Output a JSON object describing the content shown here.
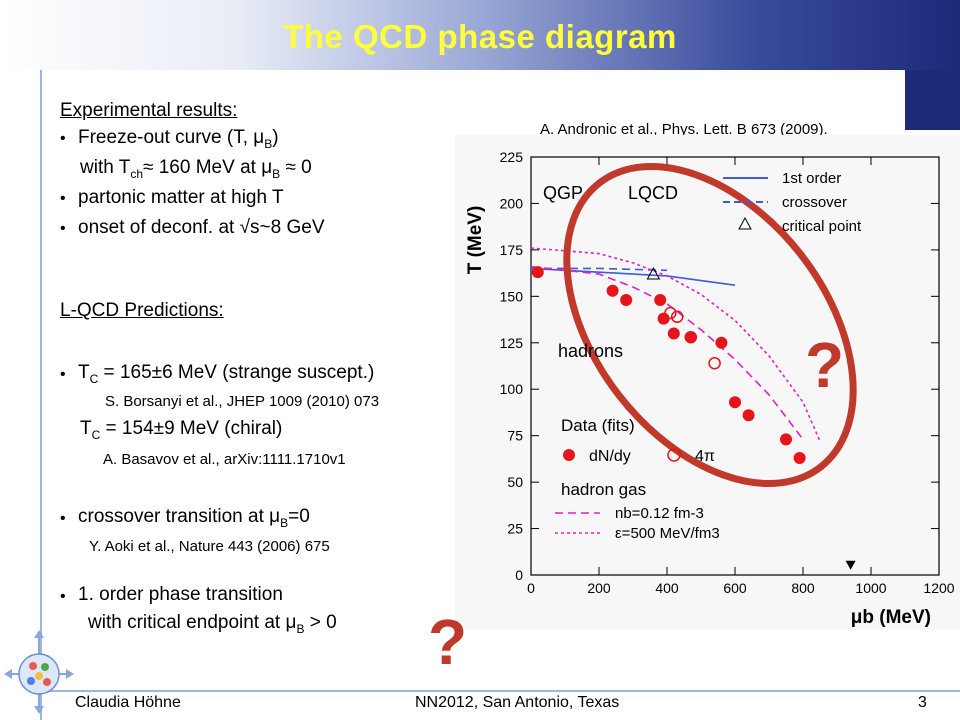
{
  "slide": {
    "title": "The QCD phase diagram",
    "experimental": {
      "heading": "Experimental results:",
      "line1": "Freeze-out curve (T, μ",
      "line1_sub": "B",
      "line1_end": ")",
      "line2_a": "with T",
      "line2_sub1": "ch",
      "line2_b": "≈ 160 MeV at μ",
      "line2_sub2": "B",
      "line2_c": "≈ 0",
      "line3": "partonic matter at high T",
      "line4": "onset of deconf. at √s~8 GeV"
    },
    "lqcd": {
      "heading": "L-QCD Predictions:",
      "tc1_a": "T",
      "tc1_sub": "C",
      "tc1_b": " = 165±6 MeV (strange suscept.)",
      "cite1": "S. Borsanyi et al., JHEP 1009 (2010) 073",
      "tc2_a": "T",
      "tc2_sub": "C",
      "tc2_b": " = 154±9 MeV (chiral)",
      "cite2": "A. Basavov et al., arXiv:1111.1710v1",
      "crossover_a": "crossover transition at μ",
      "crossover_sub": "B",
      "crossover_b": "=0",
      "cite3": "Y. Aoki et al., Nature 443 (2006) 675",
      "order_line1": "1. order phase transition",
      "order_line2_a": "with critical endpoint at  μ",
      "order_line2_sub": "B",
      "order_line2_b": " > 0"
    },
    "figure_citation": "A. Andronic et al.,  Phys. Lett. B 673 (2009).",
    "question_mark": "?",
    "footer": {
      "author": "Claudia Höhne",
      "conference": "NN2012, San Antonio, Texas",
      "page": "3"
    }
  },
  "chart_data": {
    "type": "scatter",
    "xlabel": "μb (MeV)",
    "ylabel": "T (MeV)",
    "xlim": [
      0,
      1200
    ],
    "ylim": [
      0,
      225
    ],
    "xticks": [
      "0",
      "200",
      "400",
      "600",
      "800",
      "1000",
      "1200"
    ],
    "yticks": [
      "0",
      "25",
      "50",
      "75",
      "100",
      "125",
      "150",
      "175",
      "200",
      "225"
    ],
    "region_labels": [
      "QGP",
      "LQCD",
      "hadrons",
      "Data (fits)",
      "hadron gas"
    ],
    "legend": {
      "first_order": "1st order",
      "crossover": "crossover",
      "critical_point": "critical point",
      "dndy": "dN/dy",
      "fourpi": "4π",
      "nb": "nb=0.12 fm-3",
      "eps": "ε=500 MeV/fm3"
    },
    "series": [
      {
        "name": "dN/dy",
        "marker": "filled-circle",
        "color": "#e8141c",
        "x": [
          20,
          240,
          280,
          380,
          390,
          420,
          470,
          560,
          600,
          640,
          750,
          790
        ],
        "y": [
          163,
          153,
          148,
          148,
          138,
          130,
          128,
          125,
          93,
          86,
          73,
          63
        ]
      },
      {
        "name": "4π",
        "marker": "open-circle",
        "color": "#e8141c",
        "x": [
          410,
          430,
          470,
          540
        ],
        "y": [
          141,
          139,
          128,
          114
        ]
      },
      {
        "name": "1st order",
        "line": "solid",
        "color": "#3f5bd6",
        "x": [
          0,
          200,
          400,
          600
        ],
        "y": [
          165,
          163,
          161,
          156
        ]
      },
      {
        "name": "crossover",
        "line": "dashed",
        "color": "#3f5bd6",
        "x": [
          0,
          200,
          400
        ],
        "y": [
          165,
          165,
          164
        ]
      },
      {
        "name": "nb=0.12 fm-3",
        "line": "dashed",
        "color": "#e020c8",
        "x": [
          0,
          200,
          300,
          400,
          500,
          600,
          700,
          800
        ],
        "y": [
          166,
          162,
          155,
          146,
          132,
          116,
          97,
          73
        ]
      },
      {
        "name": "ε=500 MeV/fm3",
        "line": "dotted",
        "color": "#e020c8",
        "x": [
          0,
          200,
          300,
          400,
          500,
          600,
          700,
          800,
          850
        ],
        "y": [
          176,
          173,
          168,
          161,
          151,
          137,
          118,
          93,
          72
        ]
      }
    ],
    "critical_point": {
      "x": 360,
      "y": 162
    },
    "marker_triangle_down": {
      "x": 940,
      "y": 5
    }
  }
}
